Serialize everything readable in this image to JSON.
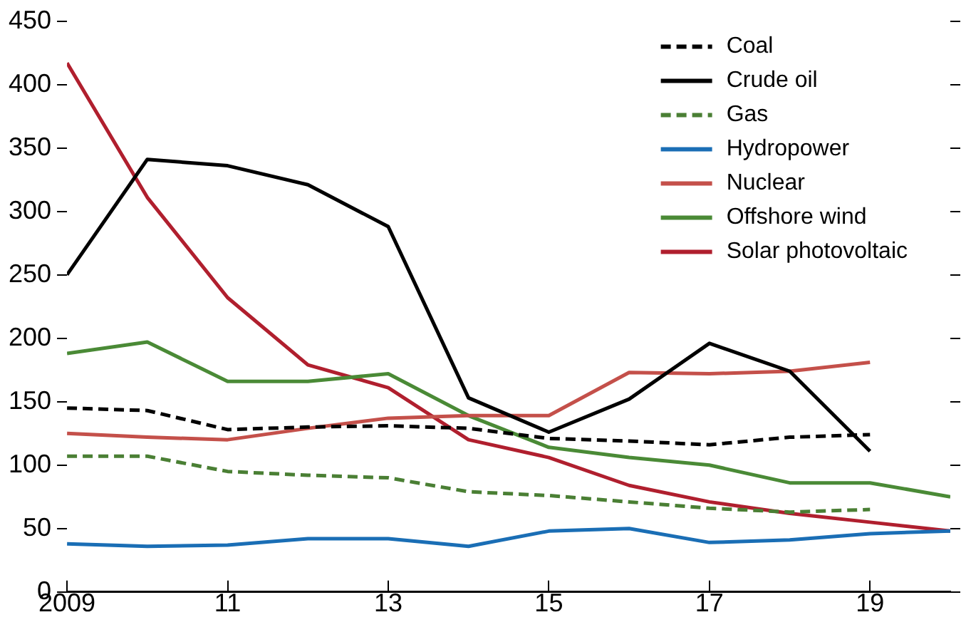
{
  "chart_data": {
    "type": "line",
    "x": [
      2009,
      2010,
      2011,
      2012,
      2013,
      2014,
      2015,
      2016,
      2017,
      2018,
      2019,
      2020
    ],
    "xlim": [
      2009,
      2020
    ],
    "xticks": [
      2009,
      {
        "value": 2011,
        "label": "11"
      },
      {
        "value": 2013,
        "label": "13"
      },
      {
        "value": 2015,
        "label": "15"
      },
      {
        "value": 2017,
        "label": "17"
      },
      {
        "value": 2019,
        "label": "19"
      }
    ],
    "ylim": [
      0,
      450
    ],
    "yticks": [
      0,
      50,
      100,
      150,
      200,
      250,
      300,
      350,
      400,
      450
    ],
    "grid": false,
    "legend": "top right",
    "marker": "none",
    "series": [
      {
        "name": "Coal",
        "color": "#000000",
        "line_style": "dashed",
        "values": [
          145,
          143,
          128,
          130,
          131,
          129,
          121,
          119,
          116,
          122,
          124,
          null
        ]
      },
      {
        "name": "Crude oil",
        "color": "#000000",
        "line_style": "solid",
        "values": [
          250,
          341,
          336,
          321,
          288,
          153,
          126,
          152,
          196,
          174,
          111,
          null
        ]
      },
      {
        "name": "Gas",
        "color": "#4a7f34",
        "line_style": "dashed",
        "values": [
          107,
          107,
          95,
          92,
          90,
          79,
          76,
          71,
          66,
          63,
          65,
          null
        ]
      },
      {
        "name": "Hydropower",
        "color": "#1a6eb5",
        "line_style": "solid",
        "values": [
          38,
          36,
          37,
          42,
          42,
          36,
          48,
          50,
          39,
          41,
          46,
          48
        ]
      },
      {
        "name": "Nuclear",
        "color": "#c4504a",
        "line_style": "solid",
        "values": [
          125,
          122,
          120,
          129,
          137,
          139,
          139,
          173,
          172,
          174,
          181,
          null
        ]
      },
      {
        "name": "Offshore wind",
        "color": "#4a8a36",
        "line_style": "solid",
        "values": [
          188,
          197,
          166,
          166,
          172,
          139,
          114,
          106,
          100,
          86,
          86,
          75
        ]
      },
      {
        "name": "Solar photovoltaic",
        "color": "#b01f2e",
        "line_style": "solid",
        "values": [
          417,
          311,
          232,
          179,
          161,
          120,
          106,
          84,
          71,
          62,
          55,
          48
        ]
      }
    ]
  }
}
